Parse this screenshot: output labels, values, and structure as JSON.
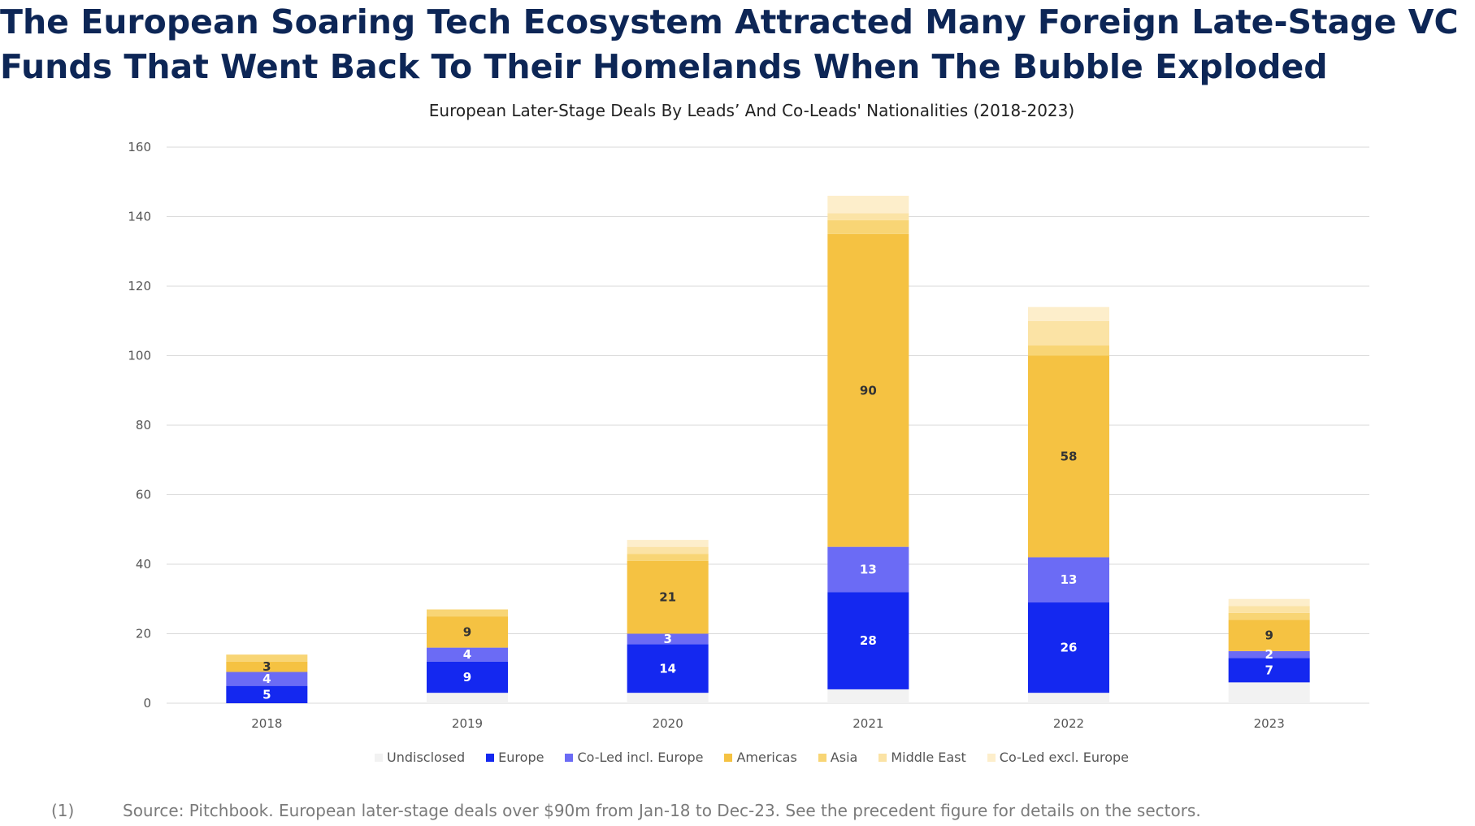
{
  "headline": "The European Soaring Tech Ecosystem Attracted Many Foreign Late-Stage VC Funds That Went Back To Their Homelands When The Bubble Exploded",
  "footnote": {
    "marker": "(1)",
    "text": "Source: Pitchbook. European later-stage deals over $90m from Jan-18 to Dec-23. See the precedent figure for details on the sectors."
  },
  "chart_data": {
    "type": "bar",
    "stacked": true,
    "title": "European Later-Stage Deals By Leads’ And Co-Leads' Nationalities (2018-2023)",
    "xlabel": "",
    "ylabel": "",
    "categories": [
      "2018",
      "2019",
      "2020",
      "2021",
      "2022",
      "2023"
    ],
    "ylim": [
      0,
      160
    ],
    "yticks": [
      0,
      20,
      40,
      60,
      80,
      100,
      120,
      140,
      160
    ],
    "grid": true,
    "legend_position": "bottom",
    "series": [
      {
        "name": "Undisclosed",
        "color": "#f2f2f2",
        "values": [
          0,
          3,
          3,
          4,
          3,
          6
        ],
        "labels": [
          "",
          "",
          "",
          "",
          "",
          ""
        ],
        "label_color": "#333333"
      },
      {
        "name": "Europe",
        "color": "#1428f0",
        "values": [
          5,
          9,
          14,
          28,
          26,
          7
        ],
        "labels": [
          "5",
          "9",
          "14",
          "28",
          "26",
          "7"
        ],
        "label_color": "#ffffff"
      },
      {
        "name": "Co-Led incl. Europe",
        "color": "#6b6bf5",
        "values": [
          4,
          4,
          3,
          13,
          13,
          2
        ],
        "labels": [
          "4",
          "4",
          "3",
          "13",
          "13",
          "2"
        ],
        "label_color": "#ffffff"
      },
      {
        "name": "Americas",
        "color": "#f5c242",
        "values": [
          3,
          9,
          21,
          90,
          58,
          9
        ],
        "labels": [
          "3",
          "9",
          "21",
          "90",
          "58",
          "9"
        ],
        "label_color": "#333333"
      },
      {
        "name": "Asia",
        "color": "#f8d575",
        "values": [
          2,
          2,
          2,
          4,
          3,
          2
        ],
        "labels": [
          "",
          "",
          "",
          "",
          "",
          ""
        ],
        "label_color": "#333333"
      },
      {
        "name": "Middle East",
        "color": "#fbe3a5",
        "values": [
          0,
          0,
          2,
          2,
          7,
          2
        ],
        "labels": [
          "",
          "",
          "",
          "",
          "",
          ""
        ],
        "label_color": "#333333"
      },
      {
        "name": "Co-Led excl. Europe",
        "color": "#fdeecb",
        "values": [
          0,
          0,
          2,
          5,
          4,
          2
        ],
        "labels": [
          "",
          "",
          "",
          "",
          "",
          ""
        ],
        "label_color": "#333333"
      }
    ]
  }
}
